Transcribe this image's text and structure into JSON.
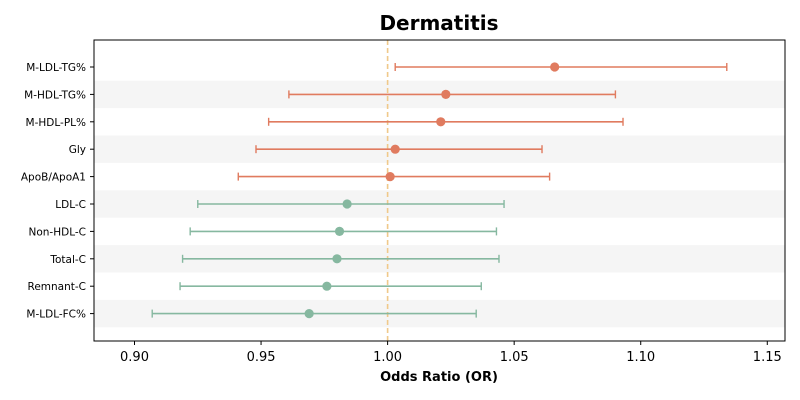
{
  "chart_data": {
    "type": "forest",
    "title": "Dermatitis",
    "xlabel": "Odds Ratio (OR)",
    "xlim": [
      0.884,
      1.157
    ],
    "xticks": [
      0.9,
      0.95,
      1.0,
      1.05,
      1.1,
      1.15
    ],
    "xtick_labels": [
      "0.90",
      "0.95",
      "1.00",
      "1.05",
      "1.10",
      "1.15"
    ],
    "reference_line": 1.0,
    "reference_line_color": "#f0c98a",
    "alternating_row_shading": "#f5f5f5",
    "colors": {
      "positive": "#e07b5f",
      "negative": "#86b8a0"
    },
    "rows": [
      {
        "label": "M-LDL-TG%",
        "or": 1.066,
        "lo": 1.003,
        "hi": 1.134,
        "group": "positive"
      },
      {
        "label": "M-HDL-TG%",
        "or": 1.023,
        "lo": 0.961,
        "hi": 1.09,
        "group": "positive"
      },
      {
        "label": "M-HDL-PL%",
        "or": 1.021,
        "lo": 0.953,
        "hi": 1.093,
        "group": "positive"
      },
      {
        "label": "Gly",
        "or": 1.003,
        "lo": 0.948,
        "hi": 1.061,
        "group": "positive"
      },
      {
        "label": "ApoB/ApoA1",
        "or": 1.001,
        "lo": 0.941,
        "hi": 1.064,
        "group": "positive"
      },
      {
        "label": "LDL-C",
        "or": 0.984,
        "lo": 0.925,
        "hi": 1.046,
        "group": "negative"
      },
      {
        "label": "Non-HDL-C",
        "or": 0.981,
        "lo": 0.922,
        "hi": 1.043,
        "group": "negative"
      },
      {
        "label": "Total-C",
        "or": 0.98,
        "lo": 0.919,
        "hi": 1.044,
        "group": "negative"
      },
      {
        "label": "Remnant-C",
        "or": 0.976,
        "lo": 0.918,
        "hi": 1.037,
        "group": "negative"
      },
      {
        "label": "M-LDL-FC%",
        "or": 0.969,
        "lo": 0.907,
        "hi": 1.035,
        "group": "negative"
      }
    ]
  }
}
